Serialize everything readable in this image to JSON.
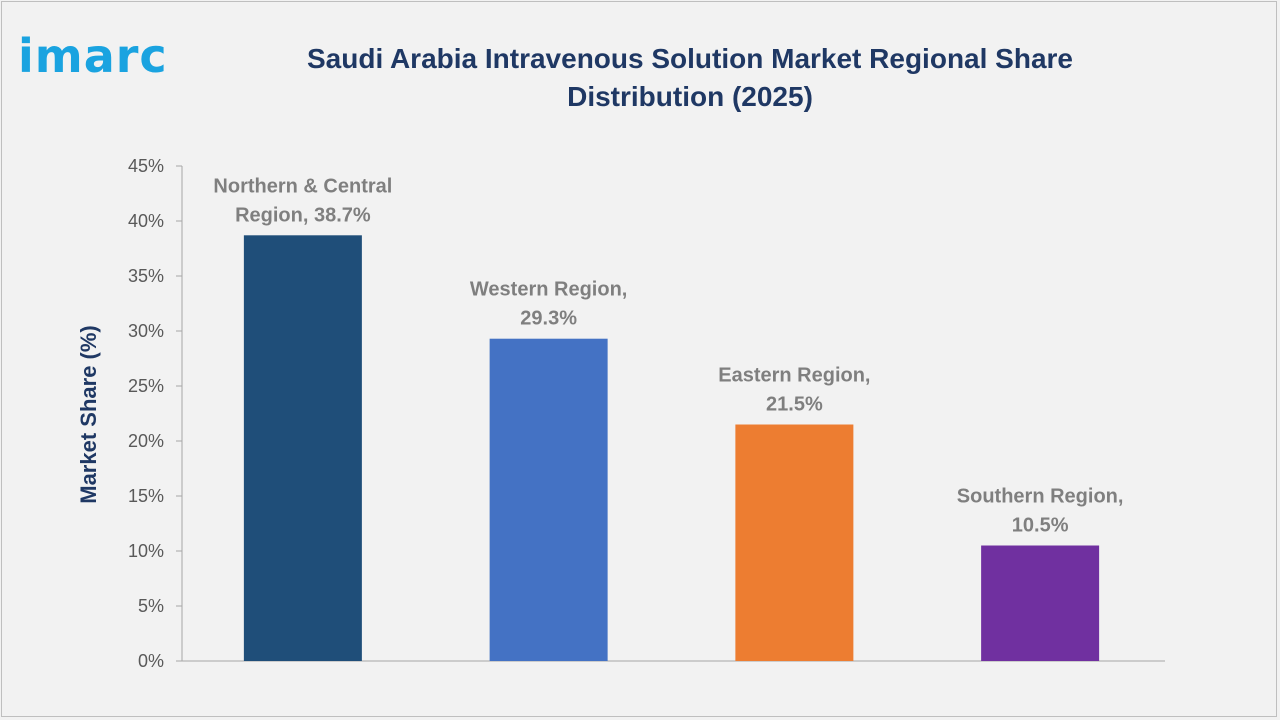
{
  "brand": {
    "logo_text": "imarc"
  },
  "chart_data": {
    "type": "bar",
    "title": "Saudi Arabia Intravenous Solution Market Regional Share Distribution (2025)",
    "ylabel": "Market Share (%)",
    "xlabel": "",
    "ylim": [
      0,
      45
    ],
    "yticks": [
      "0%",
      "5%",
      "10%",
      "15%",
      "20%",
      "25%",
      "30%",
      "35%",
      "40%",
      "45%"
    ],
    "ytick_values": [
      0,
      5,
      10,
      15,
      20,
      25,
      30,
      35,
      40,
      45
    ],
    "categories": [
      "Northern & Central Region",
      "Western Region",
      "Eastern Region",
      "Southern Region"
    ],
    "values": [
      38.7,
      29.3,
      21.5,
      10.5
    ],
    "data_labels": [
      [
        "Northern & Central",
        "Region, 38.7%"
      ],
      [
        "Western Region,",
        "29.3%"
      ],
      [
        "Eastern Region,",
        "21.5%"
      ],
      [
        "Southern Region,",
        "10.5%"
      ]
    ],
    "colors": [
      "#1f4e79",
      "#4472c4",
      "#ed7d31",
      "#7030a0"
    ],
    "grid": false,
    "legend": "none"
  }
}
